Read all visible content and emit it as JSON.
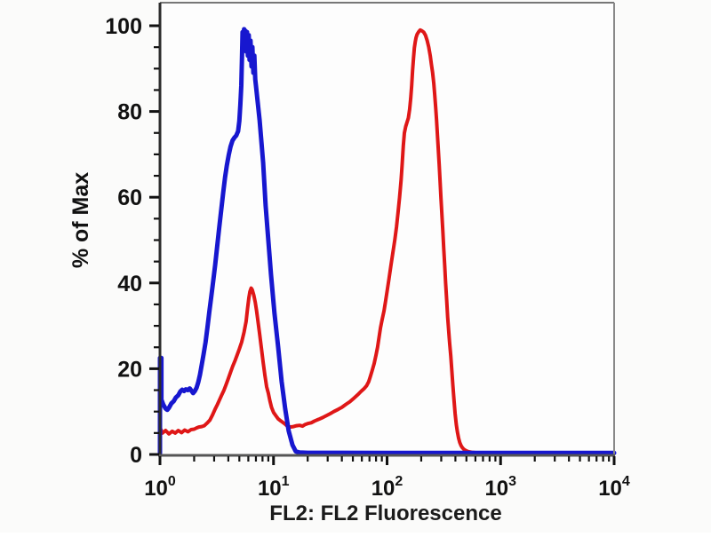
{
  "figure": {
    "background": "#fbfbfa",
    "plot_background": "#fdfdfd"
  },
  "chart_data": {
    "type": "line",
    "title": "",
    "xlabel": "FL2: FL2 Fluorescence",
    "ylabel": "% of Max",
    "x_scale": "log10",
    "xlim": [
      1,
      10000
    ],
    "ylim": [
      0,
      100
    ],
    "grid": false,
    "legend": "none",
    "y_ticks": [
      0,
      20,
      40,
      60,
      80,
      100
    ],
    "y_minor_step": 5,
    "x_tick_base": "10",
    "x_tick_exponents": [
      0,
      1,
      2,
      3,
      4
    ],
    "colors": {
      "axis_left": "#2b2b2b",
      "axis_bottom": "#555555",
      "frame_top": "#777777",
      "frame_right": "#888888",
      "tick": "#111111",
      "label": "#111111",
      "title": "#1b1b1b"
    },
    "series": [
      {
        "name": "red-curve",
        "color": "#df1717",
        "stroke_width": 4,
        "points": [
          [
            1.0,
            0.3
          ],
          [
            1.0,
            6.3
          ],
          [
            1.05,
            5.0
          ],
          [
            1.12,
            5.6
          ],
          [
            1.2,
            4.8
          ],
          [
            1.28,
            5.4
          ],
          [
            1.36,
            5.0
          ],
          [
            1.45,
            5.6
          ],
          [
            1.55,
            5.1
          ],
          [
            1.65,
            5.7
          ],
          [
            1.76,
            5.3
          ],
          [
            1.88,
            5.8
          ],
          [
            2.0,
            5.9
          ],
          [
            2.1,
            6.2
          ],
          [
            2.2,
            6.4
          ],
          [
            2.33,
            6.5
          ],
          [
            2.46,
            6.7
          ],
          [
            2.6,
            7.3
          ],
          [
            2.75,
            8.0
          ],
          [
            2.9,
            9.2
          ],
          [
            3.06,
            10.6
          ],
          [
            3.2,
            11.6
          ],
          [
            3.34,
            12.7
          ],
          [
            3.5,
            13.9
          ],
          [
            3.66,
            15.0
          ],
          [
            3.82,
            16.3
          ],
          [
            4.0,
            17.7
          ],
          [
            4.2,
            19.3
          ],
          [
            4.38,
            20.6
          ],
          [
            4.6,
            22.0
          ],
          [
            4.8,
            23.3
          ],
          [
            5.0,
            24.6
          ],
          [
            5.24,
            26.2
          ],
          [
            5.5,
            28.5
          ],
          [
            5.73,
            31.0
          ],
          [
            5.9,
            34.0
          ],
          [
            6.06,
            36.5
          ],
          [
            6.2,
            38.0
          ],
          [
            6.35,
            38.8
          ],
          [
            6.5,
            38.4
          ],
          [
            6.7,
            37.2
          ],
          [
            6.9,
            35.5
          ],
          [
            7.1,
            33.5
          ],
          [
            7.3,
            31.0
          ],
          [
            7.55,
            28.0
          ],
          [
            7.8,
            25.0
          ],
          [
            8.1,
            21.5
          ],
          [
            8.4,
            18.4
          ],
          [
            8.7,
            15.8
          ],
          [
            9.0,
            14.3
          ],
          [
            9.3,
            12.5
          ],
          [
            9.6,
            11.0
          ],
          [
            10.0,
            9.8
          ],
          [
            10.5,
            9.0
          ],
          [
            11.0,
            8.3
          ],
          [
            11.6,
            7.8
          ],
          [
            12.5,
            7.2
          ],
          [
            13.2,
            6.6
          ],
          [
            14.0,
            6.4
          ],
          [
            15.0,
            6.5
          ],
          [
            16.0,
            6.7
          ],
          [
            17.0,
            6.8
          ],
          [
            18.0,
            6.6
          ],
          [
            19.0,
            7.0
          ],
          [
            20.0,
            7.2
          ],
          [
            21.5,
            7.4
          ],
          [
            23.0,
            7.8
          ],
          [
            25.0,
            8.2
          ],
          [
            27.0,
            8.6
          ],
          [
            29.0,
            9.0
          ],
          [
            31.5,
            9.5
          ],
          [
            34.0,
            10.0
          ],
          [
            37.0,
            10.5
          ],
          [
            40.0,
            11.0
          ],
          [
            43.5,
            11.7
          ],
          [
            47.0,
            12.3
          ],
          [
            51.0,
            13.1
          ],
          [
            55.0,
            13.9
          ],
          [
            59.0,
            14.7
          ],
          [
            63.0,
            15.4
          ],
          [
            66.0,
            16.0
          ],
          [
            69.0,
            17.0
          ],
          [
            71.5,
            18.3
          ],
          [
            74.0,
            19.6
          ],
          [
            77.0,
            21.2
          ],
          [
            80.0,
            23.2
          ],
          [
            82.5,
            25.0
          ],
          [
            85.0,
            27.3
          ],
          [
            87.5,
            29.5
          ],
          [
            90.5,
            31.5
          ],
          [
            94.0,
            33.5
          ],
          [
            97.0,
            35.7
          ],
          [
            100.0,
            38.0
          ],
          [
            104.0,
            41.0
          ],
          [
            108.0,
            44.0
          ],
          [
            112.5,
            47.0
          ],
          [
            117.0,
            50.0
          ],
          [
            121.0,
            53.0
          ],
          [
            125.0,
            56.5
          ],
          [
            129.0,
            60.0
          ],
          [
            133.0,
            64.0
          ],
          [
            136.0,
            68.0
          ],
          [
            139.0,
            72.0
          ],
          [
            142.0,
            75.0
          ],
          [
            146.0,
            76.5
          ],
          [
            150.0,
            77.5
          ],
          [
            154.0,
            78.5
          ],
          [
            158.0,
            80.5
          ],
          [
            161.5,
            83.0
          ],
          [
            164.7,
            86.0
          ],
          [
            167.7,
            89.5
          ],
          [
            171.0,
            92.5
          ],
          [
            174.0,
            94.8
          ],
          [
            177.0,
            96.2
          ],
          [
            180.0,
            97.2
          ],
          [
            184.0,
            98.0
          ],
          [
            190.0,
            98.6
          ],
          [
            196.0,
            99.0
          ],
          [
            203.0,
            98.8
          ],
          [
            210.0,
            98.5
          ],
          [
            218.0,
            97.8
          ],
          [
            226.0,
            96.5
          ],
          [
            233.0,
            95.0
          ],
          [
            240.0,
            93.0
          ],
          [
            246.0,
            91.0
          ],
          [
            252.0,
            89.0
          ],
          [
            258.0,
            86.5
          ],
          [
            263.0,
            84.0
          ],
          [
            268.0,
            81.0
          ],
          [
            273.0,
            78.0
          ],
          [
            278.0,
            74.5
          ],
          [
            283.0,
            71.0
          ],
          [
            288.0,
            67.5
          ],
          [
            293.0,
            64.0
          ],
          [
            298.0,
            60.0
          ],
          [
            304.0,
            56.0
          ],
          [
            310.0,
            52.0
          ],
          [
            316.0,
            48.0
          ],
          [
            322.0,
            44.0
          ],
          [
            328.0,
            40.0
          ],
          [
            335.0,
            36.0
          ],
          [
            342.0,
            32.0
          ],
          [
            349.0,
            29.0
          ],
          [
            356.0,
            26.0
          ],
          [
            364.0,
            23.0
          ],
          [
            372.0,
            19.5
          ],
          [
            380.0,
            16.0
          ],
          [
            389.0,
            12.5
          ],
          [
            398.0,
            9.5
          ],
          [
            407.0,
            7.0
          ],
          [
            417.0,
            5.2
          ],
          [
            427.0,
            3.8
          ],
          [
            437.0,
            2.8
          ],
          [
            448.0,
            2.1
          ],
          [
            460.0,
            1.6
          ],
          [
            475.0,
            1.2
          ],
          [
            495.0,
            0.9
          ],
          [
            520.0,
            0.65
          ],
          [
            560.0,
            0.5
          ],
          [
            620.0,
            0.4
          ],
          [
            750.0,
            0.3
          ],
          [
            10000,
            0.3
          ]
        ]
      },
      {
        "name": "blue-curve",
        "color": "#1717cf",
        "stroke_width": 5,
        "points": [
          [
            1.0,
            0.3
          ],
          [
            1.0,
            22.5
          ],
          [
            1.03,
            22.5
          ],
          [
            1.03,
            12.8
          ],
          [
            1.07,
            11.6
          ],
          [
            1.12,
            10.7
          ],
          [
            1.16,
            10.4
          ],
          [
            1.2,
            10.9
          ],
          [
            1.26,
            11.9
          ],
          [
            1.32,
            12.4
          ],
          [
            1.38,
            13.3
          ],
          [
            1.45,
            13.8
          ],
          [
            1.51,
            14.7
          ],
          [
            1.57,
            15.1
          ],
          [
            1.63,
            14.8
          ],
          [
            1.69,
            15.2
          ],
          [
            1.76,
            15.0
          ],
          [
            1.83,
            15.4
          ],
          [
            1.9,
            14.8
          ],
          [
            1.96,
            14.3
          ],
          [
            2.03,
            14.8
          ],
          [
            2.1,
            15.6
          ],
          [
            2.17,
            16.8
          ],
          [
            2.25,
            18.6
          ],
          [
            2.33,
            20.8
          ],
          [
            2.42,
            23.3
          ],
          [
            2.52,
            26.2
          ],
          [
            2.62,
            29.6
          ],
          [
            2.72,
            33.2
          ],
          [
            2.83,
            36.8
          ],
          [
            2.94,
            40.3
          ],
          [
            3.06,
            44.2
          ],
          [
            3.19,
            48.6
          ],
          [
            3.32,
            52.8
          ],
          [
            3.46,
            57.0
          ],
          [
            3.6,
            61.0
          ],
          [
            3.74,
            64.6
          ],
          [
            3.88,
            67.4
          ],
          [
            4.03,
            69.8
          ],
          [
            4.18,
            71.8
          ],
          [
            4.35,
            73.2
          ],
          [
            4.52,
            73.9
          ],
          [
            4.7,
            74.4
          ],
          [
            4.88,
            75.4
          ],
          [
            5.0,
            77.8
          ],
          [
            5.1,
            81.5
          ],
          [
            5.2,
            86.0
          ],
          [
            5.27,
            92.0
          ],
          [
            5.34,
            98.5
          ],
          [
            5.42,
            96.0
          ],
          [
            5.5,
            99.2
          ],
          [
            5.58,
            95.0
          ],
          [
            5.66,
            98.8
          ],
          [
            5.75,
            94.0
          ],
          [
            5.85,
            98.5
          ],
          [
            5.95,
            93.0
          ],
          [
            6.05,
            97.8
          ],
          [
            6.15,
            92.0
          ],
          [
            6.27,
            96.5
          ],
          [
            6.4,
            90.5
          ],
          [
            6.52,
            95.0
          ],
          [
            6.65,
            89.0
          ],
          [
            6.78,
            93.0
          ],
          [
            6.9,
            87.5
          ],
          [
            7.0,
            86.0
          ],
          [
            7.54,
            78.0
          ],
          [
            8.1,
            68.0
          ],
          [
            8.52,
            58.0
          ],
          [
            9.0,
            50.0
          ],
          [
            9.5,
            42.0
          ],
          [
            10.2,
            33.0
          ],
          [
            11.0,
            25.0
          ],
          [
            11.8,
            17.0
          ],
          [
            12.7,
            10.5
          ],
          [
            13.6,
            5.5
          ],
          [
            14.7,
            2.2
          ],
          [
            15.7,
            0.7
          ],
          [
            17.0,
            0.45
          ],
          [
            20.0,
            0.4
          ],
          [
            100.0,
            0.35
          ],
          [
            1000.0,
            0.35
          ],
          [
            10000,
            0.35
          ]
        ]
      }
    ]
  }
}
